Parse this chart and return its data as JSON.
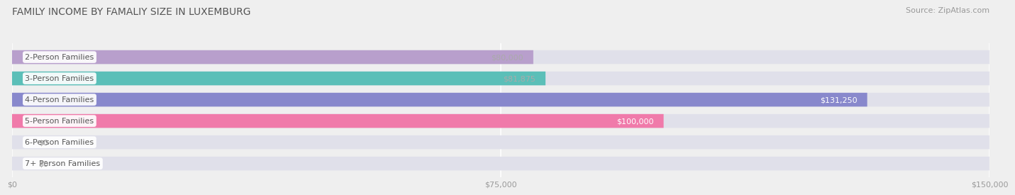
{
  "title": "FAMILY INCOME BY FAMALIY SIZE IN LUXEMBURG",
  "source": "Source: ZipAtlas.com",
  "categories": [
    "2-Person Families",
    "3-Person Families",
    "4-Person Families",
    "5-Person Families",
    "6-Person Families",
    "7+ Person Families"
  ],
  "values": [
    80000,
    81875,
    131250,
    100000,
    0,
    0
  ],
  "bar_colors": [
    "#b89fcc",
    "#5bbfb8",
    "#8888cc",
    "#f07aaa",
    "#f5c9a0",
    "#f5aaa8"
  ],
  "label_colors": [
    "#aaaaaa",
    "#aaaaaa",
    "#ffffff",
    "#ffffff",
    "#aaaaaa",
    "#aaaaaa"
  ],
  "value_labels": [
    "$80,000",
    "$81,875",
    "$131,250",
    "$100,000",
    "$0",
    "$0"
  ],
  "xlim": [
    0,
    150000
  ],
  "xticks": [
    0,
    75000,
    150000
  ],
  "xtick_labels": [
    "$0",
    "$75,000",
    "$150,000"
  ],
  "background_color": "#efefef",
  "bar_background_color": "#e0e0ea",
  "title_fontsize": 10,
  "source_fontsize": 8,
  "label_fontsize": 8,
  "value_fontsize": 8
}
